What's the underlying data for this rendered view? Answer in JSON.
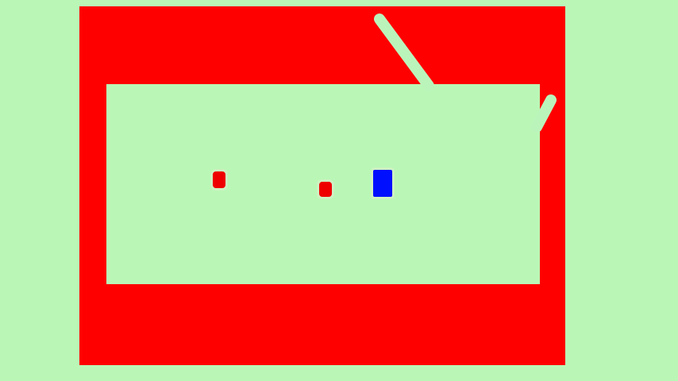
{
  "colors": {
    "background": "#baf7b6",
    "wall": "#ff0000",
    "player": "#0010ff",
    "enemy": "#ee0000",
    "stick": "#bbf4bb"
  },
  "scene": {
    "outer_wall_icon": "red-rectangle-frame",
    "inner_floor_icon": "green-rectangle",
    "stick_icon": "diagonal-stick",
    "enemy_icon": "red-square",
    "player_icon": "blue-square",
    "enemy_count": 2,
    "player_count": 1
  }
}
